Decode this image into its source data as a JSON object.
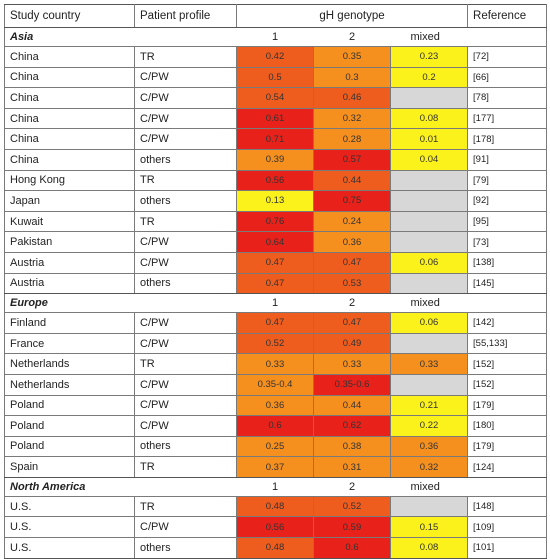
{
  "header": {
    "country": "Study country",
    "profile": "Patient profile",
    "genotype": "gH genotype",
    "reference": "Reference"
  },
  "colors": {
    "red": "#e8221a",
    "dark_orange": "#ee5d1e",
    "orange": "#f58f1e",
    "yellow": "#fbf21c",
    "gray": "#d7d7d7"
  },
  "sections": [
    {
      "region": "Asia",
      "labels": [
        "1",
        "2",
        "mixed"
      ],
      "rows": [
        {
          "country": "China",
          "profile": "TR",
          "g1": "0.42",
          "g2": "0.35",
          "gm": "0.23",
          "ref": "[72]",
          "c1": "dark_orange",
          "c2": "orange",
          "cm": "yellow"
        },
        {
          "country": "China",
          "profile": "C/PW",
          "g1": "0.5",
          "g2": "0.3",
          "gm": "0.2",
          "ref": "[66]",
          "c1": "dark_orange",
          "c2": "orange",
          "cm": "yellow"
        },
        {
          "country": "China",
          "profile": "C/PW",
          "g1": "0.54",
          "g2": "0.46",
          "gm": "",
          "ref": "[78]",
          "c1": "dark_orange",
          "c2": "dark_orange",
          "cm": "gray"
        },
        {
          "country": "China",
          "profile": "C/PW",
          "g1": "0.61",
          "g2": "0.32",
          "gm": "0.08",
          "ref": "[177]",
          "c1": "red",
          "c2": "orange",
          "cm": "yellow"
        },
        {
          "country": "China",
          "profile": "C/PW",
          "g1": "0.71",
          "g2": "0.28",
          "gm": "0.01",
          "ref": "[178]",
          "c1": "red",
          "c2": "orange",
          "cm": "yellow"
        },
        {
          "country": "China",
          "profile": "others",
          "g1": "0.39",
          "g2": "0.57",
          "gm": "0.04",
          "ref": "[91]",
          "c1": "orange",
          "c2": "red",
          "cm": "yellow"
        },
        {
          "country": "Hong Kong",
          "profile": "TR",
          "g1": "0.56",
          "g2": "0.44",
          "gm": "",
          "ref": "[79]",
          "c1": "red",
          "c2": "dark_orange",
          "cm": "gray"
        },
        {
          "country": "Japan",
          "profile": "others",
          "g1": "0.13",
          "g2": "0.75",
          "gm": "",
          "ref": "[92]",
          "c1": "yellow",
          "c2": "red",
          "cm": "gray"
        },
        {
          "country": "Kuwait",
          "profile": "TR",
          "g1": "0.76",
          "g2": "0.24",
          "gm": "",
          "ref": "[95]",
          "c1": "red",
          "c2": "orange",
          "cm": "gray"
        },
        {
          "country": "Pakistan",
          "profile": "C/PW",
          "g1": "0.64",
          "g2": "0.36",
          "gm": "",
          "ref": "[73]",
          "c1": "red",
          "c2": "orange",
          "cm": "gray"
        },
        {
          "country": "Austria",
          "profile": "C/PW",
          "g1": "0.47",
          "g2": "0.47",
          "gm": "0.06",
          "ref": "[138]",
          "c1": "dark_orange",
          "c2": "dark_orange",
          "cm": "yellow"
        },
        {
          "country": "Austria",
          "profile": "others",
          "g1": "0.47",
          "g2": "0.53",
          "gm": "",
          "ref": "[145]",
          "c1": "dark_orange",
          "c2": "dark_orange",
          "cm": "gray"
        }
      ]
    },
    {
      "region": "Europe",
      "labels": [
        "1",
        "2",
        "mixed"
      ],
      "rows": [
        {
          "country": "Finland",
          "profile": "C/PW",
          "g1": "0.47",
          "g2": "0.47",
          "gm": "0.06",
          "ref": "[142]",
          "c1": "dark_orange",
          "c2": "dark_orange",
          "cm": "yellow"
        },
        {
          "country": "France",
          "profile": "C/PW",
          "g1": "0.52",
          "g2": "0.49",
          "gm": "",
          "ref": "[55,133]",
          "c1": "dark_orange",
          "c2": "dark_orange",
          "cm": "gray"
        },
        {
          "country": "Netherlands",
          "profile": "TR",
          "g1": "0.33",
          "g2": "0.33",
          "gm": "0.33",
          "ref": "[152]",
          "c1": "orange",
          "c2": "orange",
          "cm": "orange"
        },
        {
          "country": "Netherlands",
          "profile": "C/PW",
          "g1": "0.35-0.4",
          "g2": "0.35-0.6",
          "gm": "",
          "ref": "[152]",
          "c1": "orange",
          "c2": "red",
          "cm": "gray"
        },
        {
          "country": "Poland",
          "profile": "C/PW",
          "g1": "0.36",
          "g2": "0.44",
          "gm": "0.21",
          "ref": "[179]",
          "c1": "orange",
          "c2": "orange",
          "cm": "yellow"
        },
        {
          "country": "Poland",
          "profile": "C/PW",
          "g1": "0.6",
          "g2": "0.62",
          "gm": "0.22",
          "ref": "[180]",
          "c1": "red",
          "c2": "red",
          "cm": "yellow"
        },
        {
          "country": "Poland",
          "profile": "others",
          "g1": "0.25",
          "g2": "0.38",
          "gm": "0.36",
          "ref": "[179]",
          "c1": "orange",
          "c2": "orange",
          "cm": "orange"
        },
        {
          "country": "Spain",
          "profile": "TR",
          "g1": "0.37",
          "g2": "0.31",
          "gm": "0.32",
          "ref": "[124]",
          "c1": "orange",
          "c2": "orange",
          "cm": "orange"
        }
      ]
    },
    {
      "region": "North America",
      "labels": [
        "1",
        "2",
        "mixed"
      ],
      "rows": [
        {
          "country": "U.S.",
          "profile": "TR",
          "g1": "0.48",
          "g2": "0.52",
          "gm": "",
          "ref": "[148]",
          "c1": "dark_orange",
          "c2": "dark_orange",
          "cm": "gray"
        },
        {
          "country": "U.S.",
          "profile": "C/PW",
          "g1": "0.56",
          "g2": "0.59",
          "gm": "0.15",
          "ref": "[109]",
          "c1": "red",
          "c2": "red",
          "cm": "yellow"
        },
        {
          "country": "U.S.",
          "profile": "others",
          "g1": "0.48",
          "g2": "0.6",
          "gm": "0.08",
          "ref": "[101]",
          "c1": "dark_orange",
          "c2": "red",
          "cm": "yellow"
        }
      ]
    }
  ]
}
